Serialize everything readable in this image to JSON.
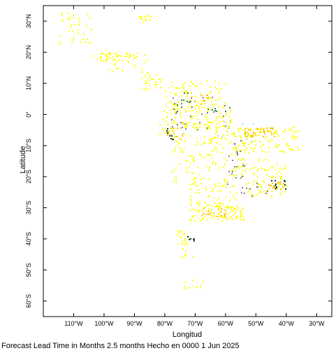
{
  "map": {
    "xlabel": "Longitud",
    "ylabel": "Latitude",
    "caption": "Forecast Lead Time in Months 2.5 months Hecho en 0000 1 Jun 2025",
    "lon_range": [
      -120,
      -25
    ],
    "lat_range": [
      -65,
      35
    ],
    "lon_ticks": [
      {
        "value": -110,
        "label": "110°W"
      },
      {
        "value": -100,
        "label": "100°W"
      },
      {
        "value": -90,
        "label": "90°W"
      },
      {
        "value": -80,
        "label": "80°W"
      },
      {
        "value": -70,
        "label": "70°W"
      },
      {
        "value": -60,
        "label": "60°W"
      },
      {
        "value": -50,
        "label": "50°W"
      },
      {
        "value": -40,
        "label": "40°W"
      },
      {
        "value": -30,
        "label": "30°W"
      }
    ],
    "lat_ticks": [
      {
        "value": 30,
        "label": "30°N"
      },
      {
        "value": 20,
        "label": "20°N"
      },
      {
        "value": 10,
        "label": "10°N"
      },
      {
        "value": 0,
        "label": "0°"
      },
      {
        "value": -10,
        "label": "10°S"
      },
      {
        "value": -20,
        "label": "20°S"
      },
      {
        "value": -30,
        "label": "30°S"
      },
      {
        "value": -40,
        "label": "40°S"
      },
      {
        "value": -50,
        "label": "50°S"
      },
      {
        "value": -60,
        "label": "60°S"
      }
    ],
    "colors": {
      "yellow": "#ffff00",
      "orange": "#ffc400",
      "green": "#2e8b2e",
      "dark_green": "#004d00",
      "gray": "#808080",
      "light_blue": "#a6dcff"
    },
    "clusters": [
      {
        "lon": [
          -115,
          -104
        ],
        "lat": [
          22,
          33
        ],
        "n": 40,
        "color": "yellow"
      },
      {
        "lon": [
          -104,
          -90
        ],
        "lat": [
          17,
          20
        ],
        "n": 40,
        "color": "yellow"
      },
      {
        "lon": [
          -99,
          -86
        ],
        "lat": [
          14,
          20
        ],
        "n": 25,
        "color": "yellow"
      },
      {
        "lon": [
          -88,
          -81
        ],
        "lat": [
          8,
          14
        ],
        "n": 30,
        "color": "yellow"
      },
      {
        "lon": [
          -89,
          -83
        ],
        "lat": [
          30,
          32
        ],
        "n": 15,
        "color": "yellow"
      },
      {
        "lon": [
          -80,
          -60
        ],
        "lat": [
          2,
          11
        ],
        "n": 90,
        "color": "yellow"
      },
      {
        "lon": [
          -82,
          -58
        ],
        "lat": [
          -8,
          2
        ],
        "n": 140,
        "color": "yellow"
      },
      {
        "lon": [
          -80,
          -74
        ],
        "lat": [
          -8,
          -2
        ],
        "n": 20,
        "color": "orange"
      },
      {
        "lon": [
          -72,
          -66
        ],
        "lat": [
          3,
          7
        ],
        "n": 12,
        "color": "orange"
      },
      {
        "lon": [
          -58,
          -36
        ],
        "lat": [
          -12,
          -4
        ],
        "n": 120,
        "color": "yellow"
      },
      {
        "lon": [
          -54,
          -44
        ],
        "lat": [
          -7,
          -4
        ],
        "n": 40,
        "color": "orange"
      },
      {
        "lon": [
          -78,
          -54
        ],
        "lat": [
          -22,
          -8
        ],
        "n": 120,
        "color": "yellow"
      },
      {
        "lon": [
          -55,
          -40
        ],
        "lat": [
          -26,
          -14
        ],
        "n": 90,
        "color": "yellow"
      },
      {
        "lon": [
          -46,
          -41
        ],
        "lat": [
          -24,
          -21
        ],
        "n": 18,
        "color": "orange"
      },
      {
        "lon": [
          -72,
          -56
        ],
        "lat": [
          -30,
          -22
        ],
        "n": 60,
        "color": "yellow"
      },
      {
        "lon": [
          -72,
          -54
        ],
        "lat": [
          -34,
          -29
        ],
        "n": 90,
        "color": "yellow"
      },
      {
        "lon": [
          -68,
          -60
        ],
        "lat": [
          -33,
          -30
        ],
        "n": 20,
        "color": "orange"
      },
      {
        "lon": [
          -76,
          -71
        ],
        "lat": [
          -46,
          -37
        ],
        "n": 25,
        "color": "yellow"
      },
      {
        "lon": [
          -74,
          -66
        ],
        "lat": [
          -56,
          -53
        ],
        "n": 10,
        "color": "yellow"
      },
      {
        "lon": [
          -78,
          -60
        ],
        "lat": [
          -5,
          6
        ],
        "n": 30,
        "color": "gray"
      },
      {
        "lon": [
          -60,
          -54
        ],
        "lat": [
          -24,
          -8
        ],
        "n": 20,
        "color": "gray"
      },
      {
        "lon": [
          -55,
          -46
        ],
        "lat": [
          -26,
          -22
        ],
        "n": 12,
        "color": "gray"
      },
      {
        "lon": [
          -76,
          -72
        ],
        "lat": [
          1,
          8
        ],
        "n": 8,
        "color": "green"
      },
      {
        "lon": [
          -66,
          -58
        ],
        "lat": [
          1,
          3
        ],
        "n": 8,
        "color": "green"
      },
      {
        "lon": [
          -80,
          -77
        ],
        "lat": [
          -8,
          -4
        ],
        "n": 8,
        "color": "dark_green"
      },
      {
        "lon": [
          -73,
          -70
        ],
        "lat": [
          -41,
          -39
        ],
        "n": 6,
        "color": "dark_green"
      },
      {
        "lon": [
          -46,
          -40
        ],
        "lat": [
          -24,
          -21
        ],
        "n": 10,
        "color": "dark_green"
      },
      {
        "lon": [
          -66,
          -50
        ],
        "lat": [
          -12,
          -1
        ],
        "n": 10,
        "color": "light_blue"
      }
    ]
  }
}
